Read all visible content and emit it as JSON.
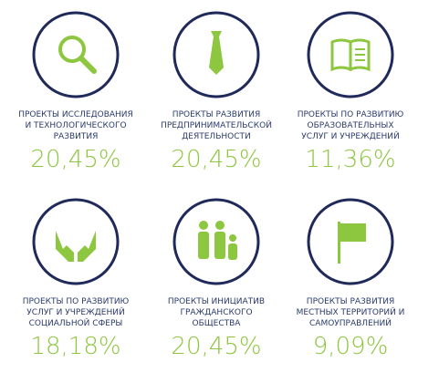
{
  "items": [
    {
      "label": [
        "ПРОЕКТЫ ИССЛЕДОВАНИЯ",
        "И ТЕХНОЛОГИЧЕСКОГО",
        "РАЗВИТИЯ"
      ],
      "value": "20,45%"
    },
    {
      "label": [
        "ПРОЕКТЫ РАЗВИТИЯ",
        "ПРЕДПРИНИМАТЕЛЬСКОЙ",
        "ДЕЯТЕЛЬНОСТИ"
      ],
      "value": "20,45%"
    },
    {
      "label": [
        "ПРОЕКТЫ ПО РАЗВИТИЮ",
        "ОБРАЗОВАТЕЛЬНЫХ",
        "УСЛУГ И УЧРЕЖДЕНИЙ"
      ],
      "value": "11,36%"
    },
    {
      "label": [
        "ПРОЕКТЫ ПО РАЗВИТИЮ",
        "УСЛУГ И УЧРЕЖДЕНИЙ",
        "СОЦИАЛЬНОЙ СФЕРЫ"
      ],
      "value": "18,18%"
    },
    {
      "label": [
        "ПРОЕКТЫ ИНИЦИАТИВ",
        "ГРАЖДАНСКОГО",
        "ОБЩЕСТВА"
      ],
      "value": "20,45%"
    },
    {
      "label": [
        "ПРОЕКТЫ РАЗВИТИЯ",
        "МЕСТНЫХ ТЕРРИТОРИЙ И",
        "САМОУПРАВЛЕНИЙ"
      ],
      "value": "9,09%"
    }
  ]
}
